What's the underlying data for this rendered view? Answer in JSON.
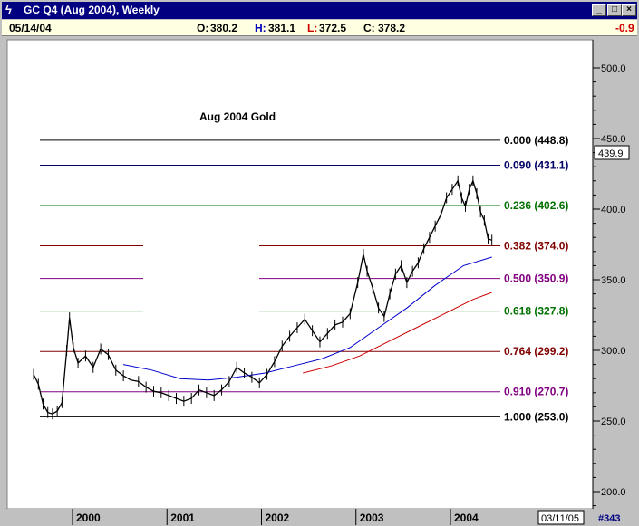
{
  "window": {
    "title": "GC Q4 (Aug 2004), Weekly",
    "icon": "chart-icon",
    "buttons": {
      "minimize": "_",
      "maximize": "□",
      "close": "×"
    }
  },
  "quote": {
    "date": "05/14/04",
    "open_label": "O:",
    "open": "380.2",
    "high_label": "H:",
    "high": "381.1",
    "low_label": "L:",
    "low": "372.5",
    "close_label": "C:",
    "close": "378.2",
    "change": "-0.9"
  },
  "footer": {
    "date_box": "03/11/05",
    "page_num": "#343"
  },
  "colors": {
    "background": "#ffffff",
    "frame": "#c0c0c0",
    "price": "#000000",
    "ma_blue": "#0000cc",
    "ma_red": "#cc0000"
  },
  "chart_data": {
    "type": "line",
    "title": "Aug 2004 Gold",
    "ylim": [
      200,
      520
    ],
    "y_ticks": [
      "500.0",
      "450.0",
      "400.0",
      "350.0",
      "300.0",
      "250.0",
      "200.0"
    ],
    "y_tick_values": [
      500,
      450,
      400,
      350,
      300,
      250,
      200
    ],
    "last_price_marker": "439.9",
    "x_labels": [
      "2000",
      "2001",
      "2002",
      "2003",
      "2004"
    ],
    "fib_levels": [
      {
        "label": "0.000 (448.8)",
        "value": 448.8,
        "color": "#000000"
      },
      {
        "label": "0.090 (431.1)",
        "value": 431.1,
        "color": "#000066"
      },
      {
        "label": "0.236 (402.6)",
        "value": 402.6,
        "color": "#007000"
      },
      {
        "label": "0.382 (374.0)",
        "value": 374.0,
        "color": "#800000"
      },
      {
        "label": "0.500 (350.9)",
        "value": 350.9,
        "color": "#800080"
      },
      {
        "label": "0.618 (327.8)",
        "value": 327.8,
        "color": "#007000"
      },
      {
        "label": "0.764 (299.2)",
        "value": 299.2,
        "color": "#800000"
      },
      {
        "label": "0.910 (270.7)",
        "value": 270.7,
        "color": "#800080"
      },
      {
        "label": "1.000 (253.0)",
        "value": 253.0,
        "color": "#000000"
      }
    ],
    "series": [
      {
        "values": [
          [
            1999.55,
            283
          ],
          [
            1999.6,
            276
          ],
          [
            1999.65,
            262
          ],
          [
            1999.7,
            256
          ],
          [
            1999.75,
            255
          ],
          [
            1999.8,
            257
          ],
          [
            1999.85,
            263
          ],
          [
            1999.9,
            300
          ],
          [
            1999.93,
            323
          ],
          [
            1999.97,
            302
          ],
          [
            2000.02,
            291
          ],
          [
            2000.1,
            296
          ],
          [
            2000.18,
            288
          ],
          [
            2000.26,
            301
          ],
          [
            2000.34,
            297
          ],
          [
            2000.42,
            286
          ],
          [
            2000.5,
            282
          ],
          [
            2000.58,
            279
          ],
          [
            2000.66,
            278
          ],
          [
            2000.74,
            274
          ],
          [
            2000.82,
            271
          ],
          [
            2000.9,
            270
          ],
          [
            2000.98,
            268
          ],
          [
            2001.06,
            266
          ],
          [
            2001.14,
            264
          ],
          [
            2001.22,
            266
          ],
          [
            2001.3,
            272
          ],
          [
            2001.38,
            270
          ],
          [
            2001.46,
            268
          ],
          [
            2001.54,
            272
          ],
          [
            2001.62,
            278
          ],
          [
            2001.7,
            288
          ],
          [
            2001.78,
            284
          ],
          [
            2001.86,
            281
          ],
          [
            2001.94,
            277
          ],
          [
            2002.02,
            283
          ],
          [
            2002.1,
            292
          ],
          [
            2002.18,
            303
          ],
          [
            2002.26,
            310
          ],
          [
            2002.34,
            316
          ],
          [
            2002.42,
            322
          ],
          [
            2002.5,
            314
          ],
          [
            2002.58,
            306
          ],
          [
            2002.66,
            312
          ],
          [
            2002.74,
            318
          ],
          [
            2002.82,
            320
          ],
          [
            2002.9,
            326
          ],
          [
            2002.98,
            348
          ],
          [
            2003.04,
            368
          ],
          [
            2003.08,
            356
          ],
          [
            2003.14,
            344
          ],
          [
            2003.2,
            330
          ],
          [
            2003.26,
            324
          ],
          [
            2003.32,
            340
          ],
          [
            2003.38,
            354
          ],
          [
            2003.44,
            360
          ],
          [
            2003.5,
            348
          ],
          [
            2003.56,
            356
          ],
          [
            2003.62,
            362
          ],
          [
            2003.68,
            372
          ],
          [
            2003.74,
            380
          ],
          [
            2003.8,
            388
          ],
          [
            2003.86,
            396
          ],
          [
            2003.92,
            408
          ],
          [
            2003.98,
            414
          ],
          [
            2004.04,
            420
          ],
          [
            2004.08,
            408
          ],
          [
            2004.12,
            402
          ],
          [
            2004.16,
            414
          ],
          [
            2004.2,
            420
          ],
          [
            2004.24,
            411
          ],
          [
            2004.28,
            398
          ],
          [
            2004.32,
            392
          ],
          [
            2004.36,
            379
          ],
          [
            2004.4,
            378
          ]
        ]
      },
      {
        "values": [
          [
            2000.5,
            290
          ],
          [
            2000.8,
            286
          ],
          [
            2001.1,
            280
          ],
          [
            2001.4,
            279
          ],
          [
            2001.7,
            281
          ],
          [
            2002.0,
            284
          ],
          [
            2002.3,
            289
          ],
          [
            2002.6,
            294
          ],
          [
            2002.9,
            302
          ],
          [
            2003.2,
            316
          ],
          [
            2003.5,
            330
          ],
          [
            2003.8,
            346
          ],
          [
            2004.1,
            360
          ],
          [
            2004.4,
            366
          ]
        ]
      },
      {
        "values": [
          [
            2002.4,
            284
          ],
          [
            2002.7,
            289
          ],
          [
            2003.0,
            296
          ],
          [
            2003.3,
            306
          ],
          [
            2003.6,
            316
          ],
          [
            2003.9,
            326
          ],
          [
            2004.2,
            336
          ],
          [
            2004.4,
            341
          ]
        ]
      }
    ]
  }
}
